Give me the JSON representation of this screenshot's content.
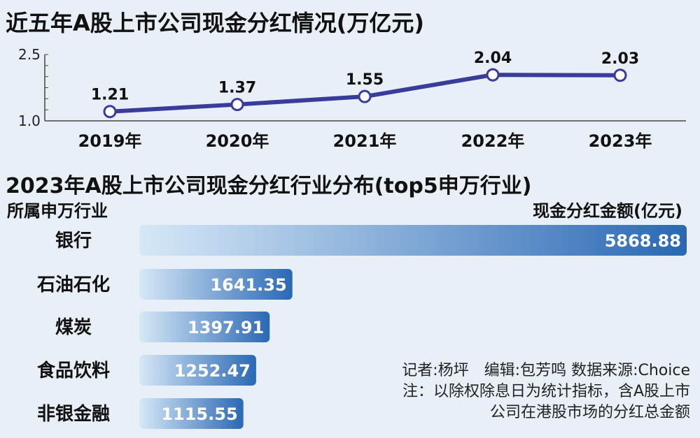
{
  "chart_data": [
    {
      "type": "line",
      "title": "近五年A股上市公司现金分红情况(万亿元)",
      "x": [
        "2019年",
        "2020年",
        "2021年",
        "2022年",
        "2023年"
      ],
      "values": [
        1.21,
        1.37,
        1.55,
        2.04,
        2.03
      ],
      "data_labels": [
        "1.21",
        "1.37",
        "1.55",
        "2.04",
        "2.03"
      ],
      "y_ticks": [
        "2.5",
        "1.0"
      ],
      "ylim": [
        1.0,
        2.5
      ],
      "color": "#3a3c9c"
    },
    {
      "type": "bar",
      "orientation": "horizontal",
      "title": "2023年A股上市公司现金分红行业分布(top5申万行业)",
      "xlabel": "现金分红金额(亿元)",
      "ylabel": "所属申万行业",
      "categories": [
        "银行",
        "石油石化",
        "煤炭",
        "食品饮料",
        "非银金融"
      ],
      "values": [
        5868.88,
        1641.35,
        1397.91,
        1252.47,
        1115.55
      ],
      "data_labels": [
        "5868.88",
        "1641.35",
        "1397.91",
        "1252.47",
        "1115.55"
      ],
      "colors": [
        "#cfe3f5",
        "#2a68b4"
      ]
    }
  ],
  "credits": {
    "line1": "记者:杨坪　编辑:包芳鸣  数据来源:Choice",
    "line2": "注：以除权除息日为统计指标，含A股上市",
    "line3": "公司在港股市场的分红总金额"
  }
}
